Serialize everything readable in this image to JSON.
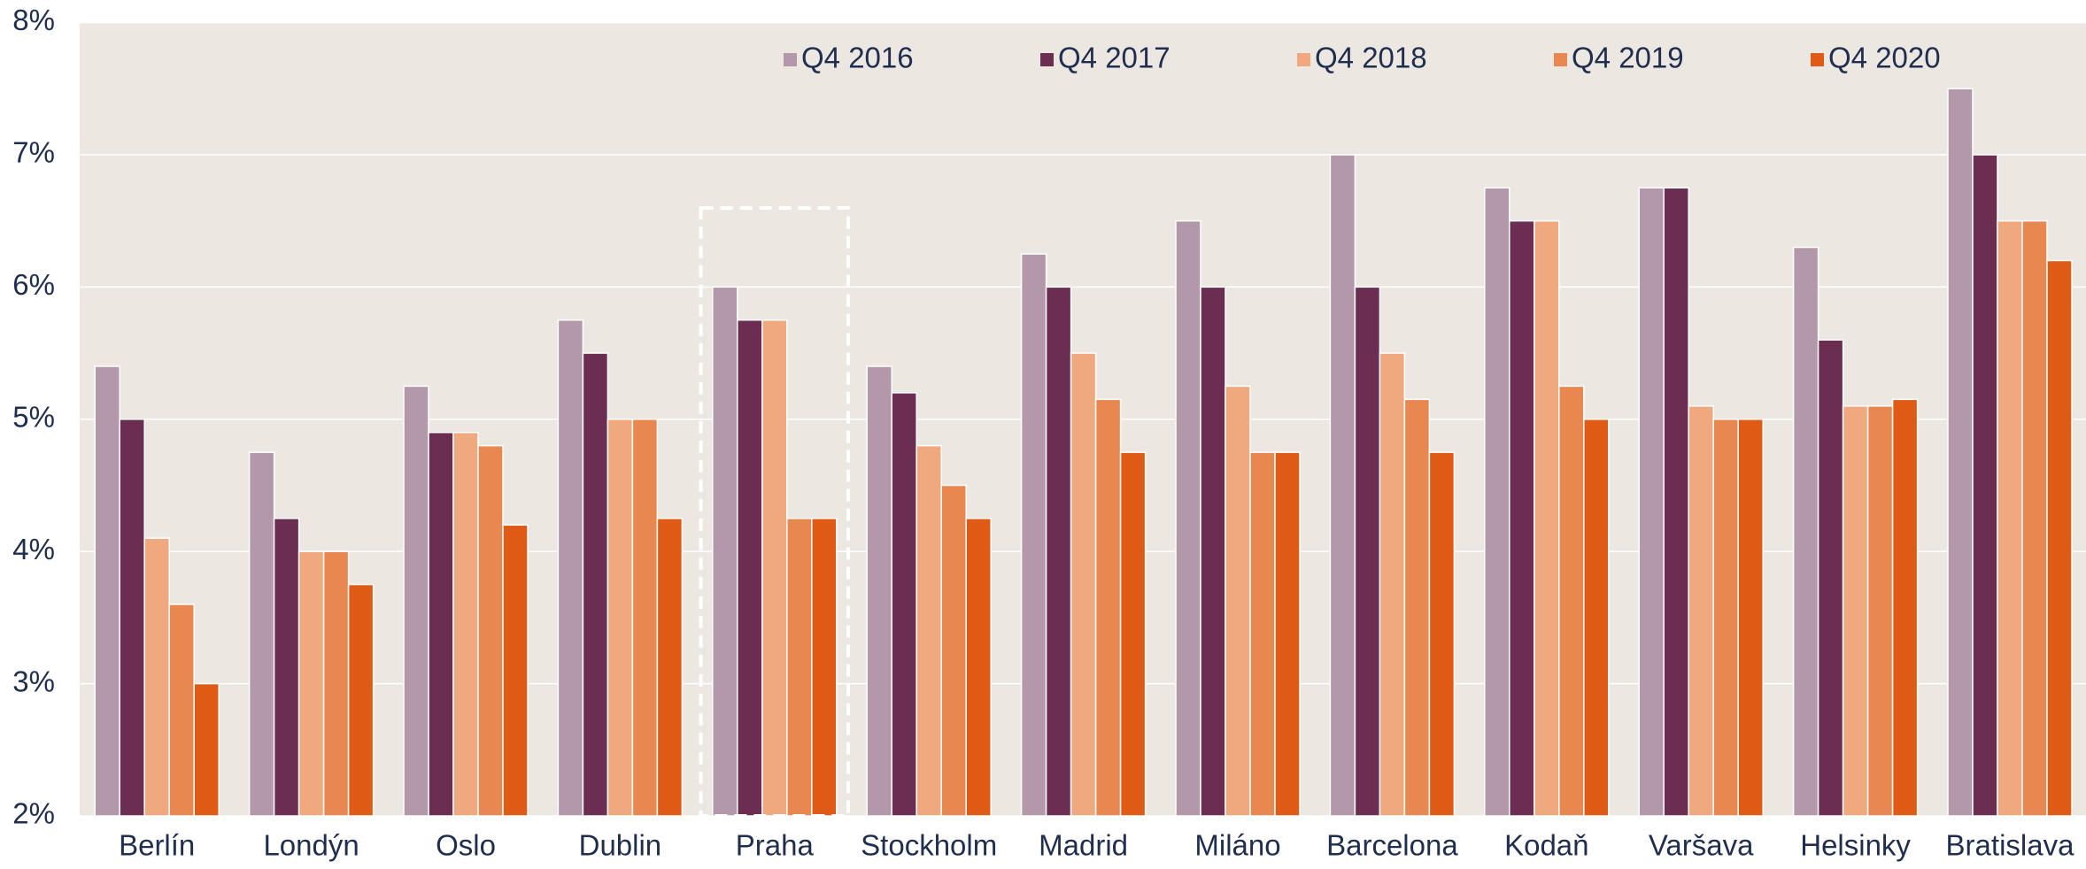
{
  "chart_data": {
    "type": "bar",
    "categories": [
      "Berlín",
      "Londýn",
      "Oslo",
      "Dublin",
      "Praha",
      "Stockholm",
      "Madrid",
      "Miláno",
      "Barcelona",
      "Kodaň",
      "Varšava",
      "Helsinky",
      "Bratislava"
    ],
    "series": [
      {
        "name": "Q4 2016",
        "color": "#b398a9",
        "values": [
          5.4,
          4.75,
          5.25,
          5.75,
          6.0,
          5.4,
          6.25,
          6.5,
          7.0,
          6.75,
          6.75,
          6.3,
          7.5
        ]
      },
      {
        "name": "Q4 2017",
        "color": "#6b2d52",
        "values": [
          5.0,
          4.25,
          4.9,
          5.5,
          5.75,
          5.2,
          6.0,
          6.0,
          6.0,
          6.5,
          6.75,
          5.6,
          7.0
        ]
      },
      {
        "name": "Q4 2018",
        "color": "#f0a97e",
        "values": [
          4.1,
          4.0,
          4.9,
          5.0,
          5.75,
          4.8,
          5.5,
          5.25,
          5.5,
          6.5,
          5.1,
          5.1,
          6.5
        ]
      },
      {
        "name": "Q4 2019",
        "color": "#e8874f",
        "values": [
          3.6,
          4.0,
          4.8,
          5.0,
          4.25,
          4.5,
          5.15,
          4.75,
          5.15,
          5.25,
          5.0,
          5.1,
          6.5
        ]
      },
      {
        "name": "Q4 2020",
        "color": "#de5a15",
        "values": [
          3.0,
          3.75,
          4.2,
          4.25,
          4.25,
          4.25,
          4.75,
          4.75,
          4.75,
          5.0,
          5.0,
          5.15,
          6.2
        ]
      }
    ],
    "ylim": [
      2,
      8
    ],
    "yticks": [
      {
        "value": 2,
        "label": "2%"
      },
      {
        "value": 3,
        "label": "3%"
      },
      {
        "value": 4,
        "label": "4%"
      },
      {
        "value": 5,
        "label": "5%"
      },
      {
        "value": 6,
        "label": "6%"
      },
      {
        "value": 7,
        "label": "7%"
      },
      {
        "value": 8,
        "label": "8%"
      }
    ],
    "grid": true,
    "legend": "top"
  }
}
